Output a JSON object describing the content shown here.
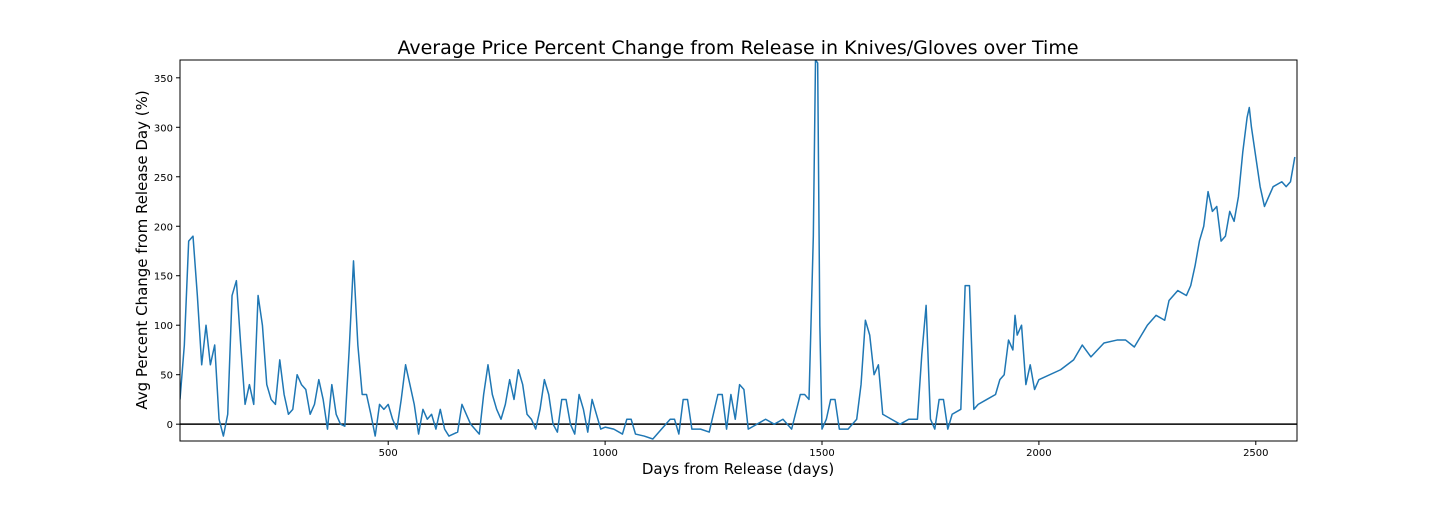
{
  "chart_data": {
    "type": "line",
    "title": "Average Price Percent Change from Release in Knives/Gloves over Time",
    "x_label": "Days from Release (days)",
    "y_label": "Avg Percent Change from Release Day (%)",
    "color": "#1f77b4",
    "reference_line": 0,
    "xlim": [
      20,
      2595
    ],
    "xticks": [
      500,
      1000,
      1500,
      2000,
      2500
    ],
    "ylim": [
      -17,
      368
    ],
    "yticks": [
      0,
      50,
      100,
      150,
      200,
      250,
      300,
      350
    ],
    "x": [
      20,
      30,
      40,
      50,
      60,
      70,
      80,
      90,
      100,
      110,
      120,
      130,
      140,
      150,
      160,
      170,
      180,
      190,
      200,
      210,
      220,
      230,
      240,
      250,
      260,
      270,
      280,
      290,
      300,
      310,
      320,
      330,
      340,
      350,
      360,
      370,
      380,
      390,
      400,
      410,
      420,
      430,
      440,
      450,
      460,
      470,
      480,
      490,
      500,
      510,
      520,
      530,
      540,
      550,
      560,
      570,
      580,
      590,
      600,
      610,
      620,
      630,
      640,
      650,
      660,
      670,
      680,
      690,
      700,
      710,
      720,
      730,
      740,
      750,
      760,
      770,
      780,
      790,
      800,
      810,
      820,
      830,
      840,
      850,
      860,
      870,
      880,
      890,
      900,
      910,
      920,
      930,
      940,
      950,
      960,
      970,
      980,
      990,
      1000,
      1020,
      1040,
      1050,
      1060,
      1070,
      1090,
      1110,
      1130,
      1150,
      1160,
      1170,
      1180,
      1190,
      1200,
      1220,
      1240,
      1260,
      1270,
      1280,
      1290,
      1300,
      1310,
      1320,
      1330,
      1350,
      1370,
      1390,
      1410,
      1430,
      1450,
      1460,
      1470,
      1480,
      1485,
      1490,
      1495,
      1500,
      1510,
      1520,
      1530,
      1540,
      1560,
      1580,
      1590,
      1600,
      1610,
      1620,
      1630,
      1640,
      1660,
      1680,
      1700,
      1720,
      1730,
      1740,
      1750,
      1760,
      1770,
      1780,
      1790,
      1800,
      1820,
      1830,
      1840,
      1850,
      1860,
      1880,
      1900,
      1910,
      1920,
      1930,
      1940,
      1945,
      1950,
      1960,
      1970,
      1980,
      1990,
      2000,
      2050,
      2080,
      2100,
      2120,
      2150,
      2180,
      2200,
      2220,
      2250,
      2270,
      2290,
      2300,
      2320,
      2340,
      2350,
      2360,
      2370,
      2380,
      2390,
      2400,
      2410,
      2420,
      2430,
      2440,
      2450,
      2460,
      2470,
      2480,
      2485,
      2490,
      2500,
      2510,
      2520,
      2540,
      2560,
      2570,
      2580,
      2590
    ],
    "values": [
      25,
      80,
      185,
      190,
      130,
      60,
      100,
      60,
      80,
      5,
      -12,
      10,
      130,
      145,
      80,
      20,
      40,
      20,
      130,
      100,
      40,
      25,
      20,
      65,
      30,
      10,
      15,
      50,
      40,
      35,
      10,
      20,
      45,
      25,
      -5,
      40,
      10,
      0,
      -2,
      75,
      165,
      80,
      30,
      30,
      10,
      -12,
      20,
      15,
      20,
      5,
      -5,
      25,
      60,
      40,
      20,
      -10,
      15,
      5,
      10,
      -5,
      15,
      -5,
      -12,
      -10,
      -8,
      20,
      10,
      0,
      -5,
      -10,
      30,
      60,
      30,
      15,
      5,
      20,
      45,
      25,
      55,
      40,
      10,
      5,
      -5,
      15,
      45,
      30,
      0,
      -8,
      25,
      25,
      0,
      -10,
      30,
      15,
      -8,
      25,
      10,
      -5,
      -3,
      -5,
      -10,
      5,
      5,
      -10,
      -12,
      -15,
      -5,
      5,
      5,
      -10,
      25,
      25,
      -5,
      -5,
      -8,
      30,
      30,
      -5,
      30,
      5,
      40,
      35,
      -5,
      0,
      5,
      0,
      5,
      -5,
      30,
      30,
      25,
      190,
      368,
      365,
      100,
      -5,
      5,
      25,
      25,
      -5,
      -5,
      5,
      40,
      105,
      90,
      50,
      60,
      10,
      5,
      0,
      5,
      5,
      70,
      120,
      5,
      -5,
      25,
      25,
      -5,
      10,
      15,
      140,
      140,
      15,
      20,
      25,
      30,
      45,
      50,
      85,
      75,
      110,
      90,
      100,
      40,
      60,
      35,
      45,
      55,
      65,
      80,
      68,
      82,
      85,
      85,
      78,
      100,
      110,
      105,
      125,
      135,
      130,
      140,
      160,
      185,
      200,
      235,
      215,
      220,
      185,
      190,
      215,
      205,
      230,
      275,
      310,
      320,
      300,
      270,
      240,
      220,
      240,
      245,
      240,
      245,
      270
    ]
  }
}
